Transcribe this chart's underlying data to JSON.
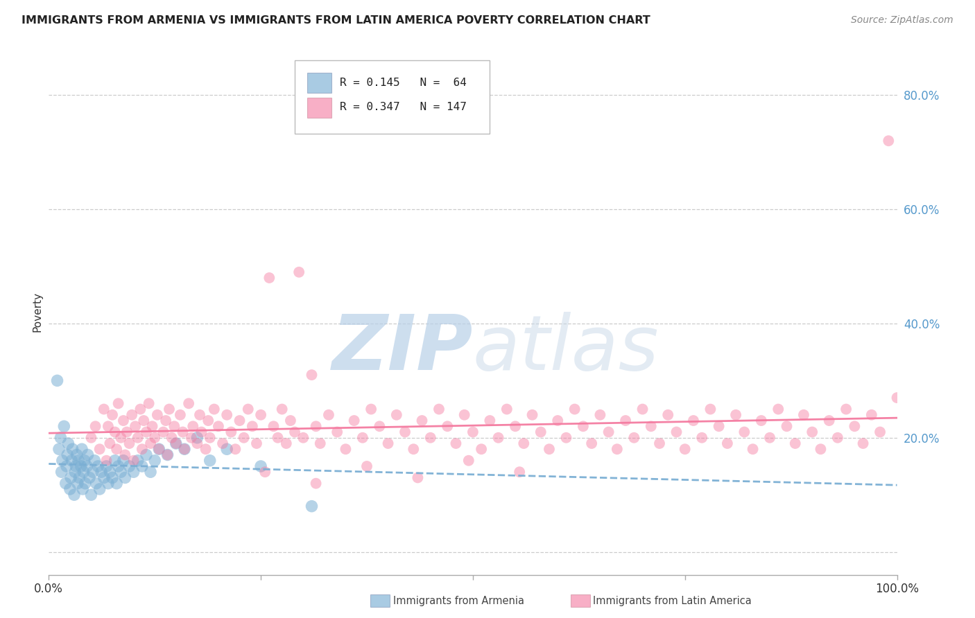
{
  "title": "IMMIGRANTS FROM ARMENIA VS IMMIGRANTS FROM LATIN AMERICA POVERTY CORRELATION CHART",
  "source": "Source: ZipAtlas.com",
  "ylabel": "Poverty",
  "armenia_R": 0.145,
  "armenia_N": 64,
  "latam_R": 0.347,
  "latam_N": 147,
  "armenia_color": "#7BAFD4",
  "latam_color": "#F47BA0",
  "background_color": "#FFFFFF",
  "xlim": [
    0.0,
    1.0
  ],
  "ylim": [
    -0.04,
    0.88
  ],
  "yticks": [
    0.0,
    0.2,
    0.4,
    0.6,
    0.8
  ],
  "ytick_labels": [
    "",
    "20.0%",
    "40.0%",
    "60.0%",
    "80.0%"
  ],
  "xtick_labels": [
    "0.0%",
    "",
    "",
    "",
    "100.0%"
  ],
  "armenia_x": [
    0.01,
    0.012,
    0.014,
    0.015,
    0.016,
    0.018,
    0.02,
    0.021,
    0.022,
    0.023,
    0.025,
    0.026,
    0.027,
    0.028,
    0.03,
    0.031,
    0.032,
    0.033,
    0.034,
    0.035,
    0.036,
    0.038,
    0.039,
    0.04,
    0.041,
    0.042,
    0.043,
    0.045,
    0.046,
    0.048,
    0.05,
    0.052,
    0.054,
    0.056,
    0.058,
    0.06,
    0.062,
    0.065,
    0.068,
    0.07,
    0.072,
    0.075,
    0.078,
    0.08,
    0.082,
    0.085,
    0.088,
    0.09,
    0.095,
    0.1,
    0.105,
    0.11,
    0.115,
    0.12,
    0.125,
    0.13,
    0.14,
    0.15,
    0.16,
    0.175,
    0.19,
    0.21,
    0.25,
    0.31
  ],
  "armenia_y": [
    0.3,
    0.18,
    0.2,
    0.14,
    0.16,
    0.22,
    0.12,
    0.15,
    0.17,
    0.19,
    0.11,
    0.13,
    0.16,
    0.18,
    0.1,
    0.14,
    0.15,
    0.17,
    0.12,
    0.16,
    0.13,
    0.15,
    0.18,
    0.11,
    0.14,
    0.16,
    0.12,
    0.15,
    0.17,
    0.13,
    0.1,
    0.14,
    0.16,
    0.12,
    0.15,
    0.11,
    0.14,
    0.13,
    0.15,
    0.12,
    0.14,
    0.13,
    0.16,
    0.12,
    0.15,
    0.14,
    0.16,
    0.13,
    0.15,
    0.14,
    0.16,
    0.15,
    0.17,
    0.14,
    0.16,
    0.18,
    0.17,
    0.19,
    0.18,
    0.2,
    0.16,
    0.18,
    0.15,
    0.08
  ],
  "latam_x": [
    0.05,
    0.055,
    0.06,
    0.065,
    0.068,
    0.07,
    0.072,
    0.075,
    0.078,
    0.08,
    0.082,
    0.085,
    0.088,
    0.09,
    0.092,
    0.095,
    0.098,
    0.1,
    0.102,
    0.105,
    0.108,
    0.11,
    0.112,
    0.115,
    0.118,
    0.12,
    0.122,
    0.125,
    0.128,
    0.13,
    0.135,
    0.138,
    0.14,
    0.142,
    0.145,
    0.148,
    0.15,
    0.155,
    0.158,
    0.16,
    0.165,
    0.168,
    0.17,
    0.175,
    0.178,
    0.18,
    0.185,
    0.188,
    0.19,
    0.195,
    0.2,
    0.205,
    0.21,
    0.215,
    0.22,
    0.225,
    0.23,
    0.235,
    0.24,
    0.245,
    0.25,
    0.26,
    0.265,
    0.27,
    0.275,
    0.28,
    0.285,
    0.29,
    0.295,
    0.3,
    0.31,
    0.315,
    0.32,
    0.33,
    0.34,
    0.35,
    0.36,
    0.37,
    0.38,
    0.39,
    0.4,
    0.41,
    0.42,
    0.43,
    0.44,
    0.45,
    0.46,
    0.47,
    0.48,
    0.49,
    0.5,
    0.51,
    0.52,
    0.53,
    0.54,
    0.55,
    0.56,
    0.57,
    0.58,
    0.59,
    0.6,
    0.61,
    0.62,
    0.63,
    0.64,
    0.65,
    0.66,
    0.67,
    0.68,
    0.69,
    0.7,
    0.71,
    0.72,
    0.73,
    0.74,
    0.75,
    0.76,
    0.77,
    0.78,
    0.79,
    0.8,
    0.81,
    0.82,
    0.83,
    0.84,
    0.85,
    0.86,
    0.87,
    0.88,
    0.89,
    0.9,
    0.91,
    0.92,
    0.93,
    0.94,
    0.95,
    0.96,
    0.97,
    0.98,
    0.99,
    1.0,
    0.255,
    0.315,
    0.375,
    0.435,
    0.495,
    0.555
  ],
  "latam_y": [
    0.2,
    0.22,
    0.18,
    0.25,
    0.16,
    0.22,
    0.19,
    0.24,
    0.21,
    0.18,
    0.26,
    0.2,
    0.23,
    0.17,
    0.21,
    0.19,
    0.24,
    0.16,
    0.22,
    0.2,
    0.25,
    0.18,
    0.23,
    0.21,
    0.26,
    0.19,
    0.22,
    0.2,
    0.24,
    0.18,
    0.21,
    0.23,
    0.17,
    0.25,
    0.2,
    0.22,
    0.19,
    0.24,
    0.21,
    0.18,
    0.26,
    0.2,
    0.22,
    0.19,
    0.24,
    0.21,
    0.18,
    0.23,
    0.2,
    0.25,
    0.22,
    0.19,
    0.24,
    0.21,
    0.18,
    0.23,
    0.2,
    0.25,
    0.22,
    0.19,
    0.24,
    0.48,
    0.22,
    0.2,
    0.25,
    0.19,
    0.23,
    0.21,
    0.49,
    0.2,
    0.31,
    0.22,
    0.19,
    0.24,
    0.21,
    0.18,
    0.23,
    0.2,
    0.25,
    0.22,
    0.19,
    0.24,
    0.21,
    0.18,
    0.23,
    0.2,
    0.25,
    0.22,
    0.19,
    0.24,
    0.21,
    0.18,
    0.23,
    0.2,
    0.25,
    0.22,
    0.19,
    0.24,
    0.21,
    0.18,
    0.23,
    0.2,
    0.25,
    0.22,
    0.19,
    0.24,
    0.21,
    0.18,
    0.23,
    0.2,
    0.25,
    0.22,
    0.19,
    0.24,
    0.21,
    0.18,
    0.23,
    0.2,
    0.25,
    0.22,
    0.19,
    0.24,
    0.21,
    0.18,
    0.23,
    0.2,
    0.25,
    0.22,
    0.19,
    0.24,
    0.21,
    0.18,
    0.23,
    0.2,
    0.25,
    0.22,
    0.19,
    0.24,
    0.21,
    0.72,
    0.27,
    0.14,
    0.12,
    0.15,
    0.13,
    0.16,
    0.14
  ]
}
